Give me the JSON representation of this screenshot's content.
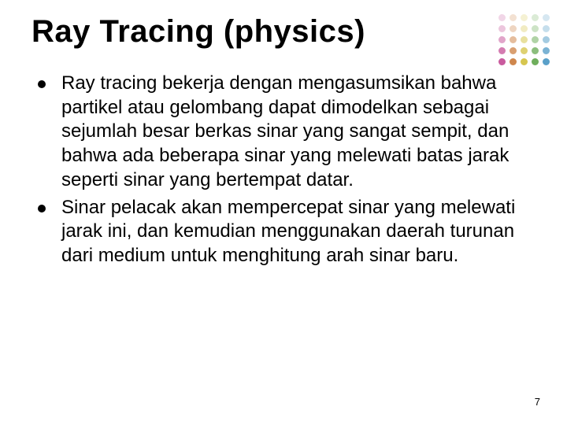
{
  "title": "Ray Tracing (physics)",
  "bullets": [
    "Ray tracing bekerja dengan mengasumsikan bahwa partikel atau gelombang dapat dimodelkan sebagai sejumlah besar berkas sinar yang sangat sempit, dan bahwa ada beberapa sinar yang melewati batas jarak seperti sinar yang bertempat datar.",
    "Sinar pelacak akan mempercepat sinar yang melewati jarak ini, dan kemudian menggunakan daerah turunan dari medium untuk menghitung arah sinar baru."
  ],
  "page_number": "7",
  "decor_colors": [
    "#c95b9e",
    "#cf874d",
    "#d6c64f",
    "#6fae5c",
    "#5aa0c9",
    "#c95b9e",
    "#cf874d",
    "#d6c64f",
    "#6fae5c",
    "#5aa0c9",
    "#c95b9e",
    "#cf874d",
    "#d6c64f",
    "#6fae5c",
    "#5aa0c9",
    "#c95b9e",
    "#cf874d",
    "#d6c64f",
    "#6fae5c",
    "#5aa0c9",
    "#c95b9e",
    "#cf874d",
    "#d6c64f",
    "#6fae5c",
    "#5aa0c9"
  ],
  "decor_opacity": [
    0.25,
    0.25,
    0.25,
    0.25,
    0.25,
    0.35,
    0.35,
    0.35,
    0.35,
    0.35,
    0.55,
    0.55,
    0.55,
    0.55,
    0.55,
    0.8,
    0.8,
    0.8,
    0.8,
    0.8,
    1,
    1,
    1,
    1,
    1
  ]
}
